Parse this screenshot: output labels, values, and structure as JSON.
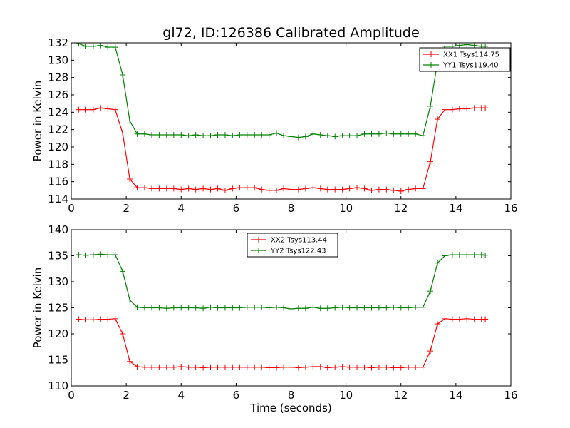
{
  "chart_data": [
    {
      "type": "line",
      "title": "gl72, ID:126386 Calibrated Amplitude",
      "xlabel": "",
      "ylabel": "Power in Kelvin",
      "xlim": [
        0,
        16
      ],
      "ylim": [
        114,
        132
      ],
      "xticks": [
        0,
        2,
        4,
        6,
        8,
        10,
        12,
        14,
        16
      ],
      "yticks": [
        114,
        116,
        118,
        120,
        122,
        124,
        126,
        128,
        130,
        132
      ],
      "grid": false,
      "legend_position": "upper right",
      "x": [
        0.27,
        0.53,
        0.8,
        1.07,
        1.33,
        1.6,
        1.87,
        2.13,
        2.4,
        2.67,
        2.93,
        3.2,
        3.47,
        3.73,
        4.0,
        4.27,
        4.53,
        4.8,
        5.07,
        5.33,
        5.6,
        5.87,
        6.13,
        6.4,
        6.67,
        6.93,
        7.2,
        7.47,
        7.73,
        8.0,
        8.27,
        8.53,
        8.8,
        9.07,
        9.33,
        9.6,
        9.87,
        10.13,
        10.4,
        10.67,
        10.93,
        11.2,
        11.47,
        11.73,
        12.0,
        12.27,
        12.53,
        12.8,
        13.07,
        13.33,
        13.6,
        13.87,
        14.13,
        14.4,
        14.67,
        14.93,
        15.07
      ],
      "series": [
        {
          "name": "XX1 Tsys114.75",
          "color": "#ff0000",
          "values": [
            124.3,
            124.3,
            124.3,
            124.5,
            124.4,
            124.3,
            121.6,
            116.3,
            115.3,
            115.3,
            115.2,
            115.2,
            115.2,
            115.2,
            115.1,
            115.2,
            115.1,
            115.2,
            115.1,
            115.2,
            115.0,
            115.2,
            115.3,
            115.3,
            115.3,
            115.1,
            115.0,
            115.0,
            115.2,
            115.1,
            115.1,
            115.2,
            115.3,
            115.2,
            115.1,
            115.1,
            115.1,
            115.2,
            115.3,
            115.2,
            115.0,
            115.1,
            115.1,
            115.0,
            114.9,
            115.1,
            115.2,
            115.2,
            118.3,
            123.2,
            124.3,
            124.3,
            124.4,
            124.4,
            124.5,
            124.5,
            124.5
          ]
        },
        {
          "name": "YY1 Tsys119.40",
          "color": "#008000",
          "values": [
            131.9,
            131.6,
            131.6,
            131.7,
            131.5,
            131.5,
            128.3,
            123.0,
            121.5,
            121.5,
            121.4,
            121.4,
            121.4,
            121.4,
            121.4,
            121.3,
            121.4,
            121.3,
            121.3,
            121.4,
            121.4,
            121.3,
            121.4,
            121.4,
            121.4,
            121.4,
            121.4,
            121.6,
            121.3,
            121.2,
            121.1,
            121.2,
            121.5,
            121.4,
            121.3,
            121.2,
            121.3,
            121.3,
            121.3,
            121.5,
            121.5,
            121.5,
            121.6,
            121.5,
            121.5,
            121.5,
            121.5,
            121.3,
            124.7,
            129.8,
            131.6,
            131.6,
            131.7,
            131.8,
            131.7,
            131.6,
            131.6
          ]
        }
      ]
    },
    {
      "type": "line",
      "title": "",
      "xlabel": "Time (seconds)",
      "ylabel": "Power in Kelvin",
      "xlim": [
        0,
        16
      ],
      "ylim": [
        110,
        140
      ],
      "xticks": [
        0,
        2,
        4,
        6,
        8,
        10,
        12,
        14,
        16
      ],
      "yticks": [
        110,
        115,
        120,
        125,
        130,
        135,
        140
      ],
      "grid": false,
      "legend_position": "upper center",
      "x": [
        0.27,
        0.53,
        0.8,
        1.07,
        1.33,
        1.6,
        1.87,
        2.13,
        2.4,
        2.67,
        2.93,
        3.2,
        3.47,
        3.73,
        4.0,
        4.27,
        4.53,
        4.8,
        5.07,
        5.33,
        5.6,
        5.87,
        6.13,
        6.4,
        6.67,
        6.93,
        7.2,
        7.47,
        7.73,
        8.0,
        8.27,
        8.53,
        8.8,
        9.07,
        9.33,
        9.6,
        9.87,
        10.13,
        10.4,
        10.67,
        10.93,
        11.2,
        11.47,
        11.73,
        12.0,
        12.27,
        12.53,
        12.8,
        13.07,
        13.33,
        13.6,
        13.87,
        14.13,
        14.4,
        14.67,
        14.93,
        15.07
      ],
      "series": [
        {
          "name": "XX2 Tsys113.44",
          "color": "#ff0000",
          "values": [
            122.8,
            122.7,
            122.7,
            122.8,
            122.8,
            122.9,
            120.0,
            114.7,
            113.7,
            113.6,
            113.6,
            113.6,
            113.6,
            113.6,
            113.7,
            113.6,
            113.6,
            113.5,
            113.6,
            113.6,
            113.6,
            113.6,
            113.6,
            113.6,
            113.6,
            113.6,
            113.5,
            113.5,
            113.6,
            113.6,
            113.5,
            113.6,
            113.7,
            113.7,
            113.5,
            113.6,
            113.7,
            113.6,
            113.6,
            113.6,
            113.5,
            113.6,
            113.6,
            113.5,
            113.5,
            113.6,
            113.6,
            113.6,
            116.7,
            121.9,
            122.9,
            122.8,
            122.8,
            122.9,
            122.8,
            122.8,
            122.8
          ]
        },
        {
          "name": "YY2 Tsys122.43",
          "color": "#008000",
          "values": [
            135.2,
            135.1,
            135.2,
            135.3,
            135.2,
            135.2,
            132.0,
            126.5,
            125.1,
            125.0,
            125.0,
            125.0,
            124.9,
            125.0,
            125.0,
            125.0,
            125.0,
            124.9,
            125.1,
            125.0,
            125.0,
            125.0,
            125.0,
            125.1,
            125.1,
            125.1,
            125.0,
            125.1,
            125.0,
            124.8,
            124.9,
            124.9,
            125.1,
            124.9,
            124.9,
            125.0,
            125.1,
            125.0,
            125.0,
            125.0,
            125.0,
            125.0,
            125.0,
            125.1,
            125.0,
            125.0,
            125.1,
            125.1,
            128.2,
            133.6,
            135.0,
            135.2,
            135.2,
            135.2,
            135.2,
            135.2,
            135.1
          ]
        }
      ]
    }
  ]
}
